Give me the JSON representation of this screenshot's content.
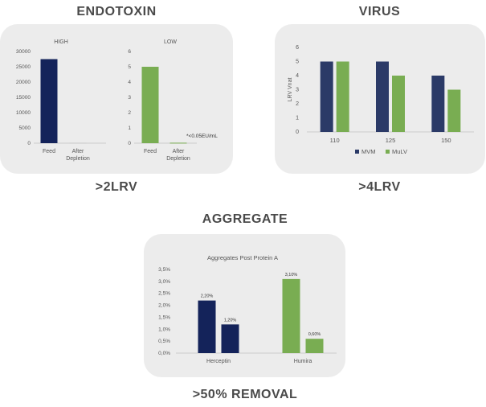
{
  "sections": {
    "endotoxin": {
      "title": "ENDOTOXIN",
      "result": ">2LRV"
    },
    "virus": {
      "title": "VIRUS",
      "result": ">4LRV"
    },
    "aggregate": {
      "title": "AGGREGATE",
      "result": ">50% REMOVAL"
    }
  },
  "colors": {
    "navy": "#14235a",
    "green": "#79ad52",
    "panel": "#ececec",
    "axis": "#555555"
  },
  "chart_data": [
    {
      "id": "high",
      "type": "bar",
      "title": "HIGH",
      "categories": [
        "Feed",
        "After Depletion"
      ],
      "values": [
        27500,
        150
      ],
      "bar_colors": [
        "#14235a",
        "#c9c9c9"
      ],
      "ylim": [
        0,
        30000
      ],
      "yticks": [
        "0",
        "5000",
        "10000",
        "15000",
        "20000",
        "25000",
        "30000"
      ]
    },
    {
      "id": "low",
      "type": "bar",
      "title": "LOW",
      "categories": [
        "Feed",
        "After Depletion"
      ],
      "values": [
        5,
        0.03
      ],
      "bar_colors": [
        "#79ad52",
        "#79ad52"
      ],
      "ylim": [
        0,
        6
      ],
      "yticks": [
        "0",
        "1",
        "2",
        "3",
        "4",
        "5",
        "6"
      ],
      "annotation": "*<0.05EU/mL"
    },
    {
      "id": "virus",
      "type": "bar",
      "categories": [
        "110",
        "125",
        "150"
      ],
      "series": [
        {
          "name": "MVM",
          "values": [
            5,
            5,
            4
          ],
          "color": "#2b3a67"
        },
        {
          "name": "MuLV",
          "values": [
            5,
            4,
            3
          ],
          "color": "#79ad52"
        }
      ],
      "ylabel": "LRV Vnat",
      "ylim": [
        0,
        6
      ],
      "yticks": [
        "0",
        "1",
        "2",
        "3",
        "4",
        "5",
        "6"
      ],
      "legend": "bottom"
    },
    {
      "id": "aggregate",
      "type": "bar",
      "title": "Aggregates Post Protein A",
      "categories": [
        "Herceptin",
        "Humira"
      ],
      "series": [
        {
          "values": [
            2.2,
            3.1
          ],
          "color": "#14235a",
          "labels": [
            "2,20%",
            ""
          ]
        },
        {
          "values": [
            1.2,
            0.6
          ],
          "color": "#14235a",
          "labels": [
            "1,20%",
            ""
          ]
        }
      ],
      "bars": [
        {
          "group": 0,
          "value": 2.2,
          "label": "2,20%",
          "color": "#14235a"
        },
        {
          "group": 0,
          "value": 1.2,
          "label": "1,20%",
          "color": "#14235a"
        },
        {
          "group": 1,
          "value": 3.1,
          "label": "3,10%",
          "color": "#79ad52"
        },
        {
          "group": 1,
          "value": 0.6,
          "label": "0,60%",
          "color": "#79ad52"
        }
      ],
      "ylim": [
        0,
        3.5
      ],
      "yticks": [
        "0,0%",
        "0,5%",
        "1,0%",
        "1,5%",
        "2,0%",
        "2,5%",
        "3,0%",
        "3,5%"
      ]
    }
  ]
}
